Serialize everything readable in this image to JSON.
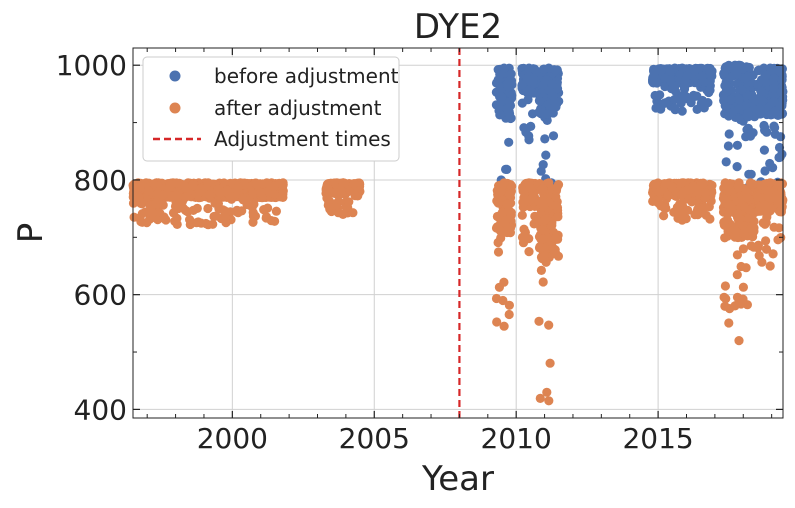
{
  "chart_data": {
    "type": "scatter",
    "title": "DYE2",
    "xlabel": "Year",
    "ylabel": "P",
    "xlim": [
      1996.5,
      2019.4
    ],
    "ylim": [
      385,
      1030
    ],
    "xticks": [
      2000,
      2005,
      2010,
      2015
    ],
    "yticks": [
      400,
      600,
      800,
      1000
    ],
    "grid": true,
    "legend_position": "top-left",
    "colors": {
      "before": "#4c72b0",
      "after": "#dd8452",
      "adjustment": "#d62728"
    },
    "series": [
      {
        "name": "before adjustment",
        "segments": [
          {
            "x0": 2009.3,
            "x1": 2009.85,
            "min": 740,
            "max": 995
          },
          {
            "x0": 2010.2,
            "x1": 2010.7,
            "min": 870,
            "max": 995
          },
          {
            "x0": 2010.8,
            "x1": 2011.5,
            "min": 760,
            "max": 995
          },
          {
            "x0": 2014.8,
            "x1": 2016.9,
            "min": 920,
            "max": 995
          },
          {
            "x0": 2017.3,
            "x1": 2018.4,
            "min": 740,
            "max": 1000
          },
          {
            "x0": 2018.5,
            "x1": 2019.4,
            "min": 760,
            "max": 995
          }
        ]
      },
      {
        "name": "after adjustment",
        "segments": [
          {
            "x0": 1996.5,
            "x1": 2001.8,
            "min": 722,
            "max": 795
          },
          {
            "x0": 2003.3,
            "x1": 2004.5,
            "min": 740,
            "max": 795
          },
          {
            "x0": 2009.3,
            "x1": 2009.85,
            "min": 545,
            "max": 795
          },
          {
            "x0": 2010.2,
            "x1": 2010.7,
            "min": 675,
            "max": 795
          },
          {
            "x0": 2010.8,
            "x1": 2011.5,
            "min": 415,
            "max": 795
          },
          {
            "x0": 2014.8,
            "x1": 2016.9,
            "min": 730,
            "max": 795
          },
          {
            "x0": 2017.3,
            "x1": 2018.4,
            "min": 520,
            "max": 795
          },
          {
            "x0": 2018.5,
            "x1": 2019.4,
            "min": 650,
            "max": 795
          }
        ]
      },
      {
        "name": "Adjustment times",
        "style": "dashed-vertical-line",
        "x": [
          2008.0
        ]
      }
    ]
  }
}
